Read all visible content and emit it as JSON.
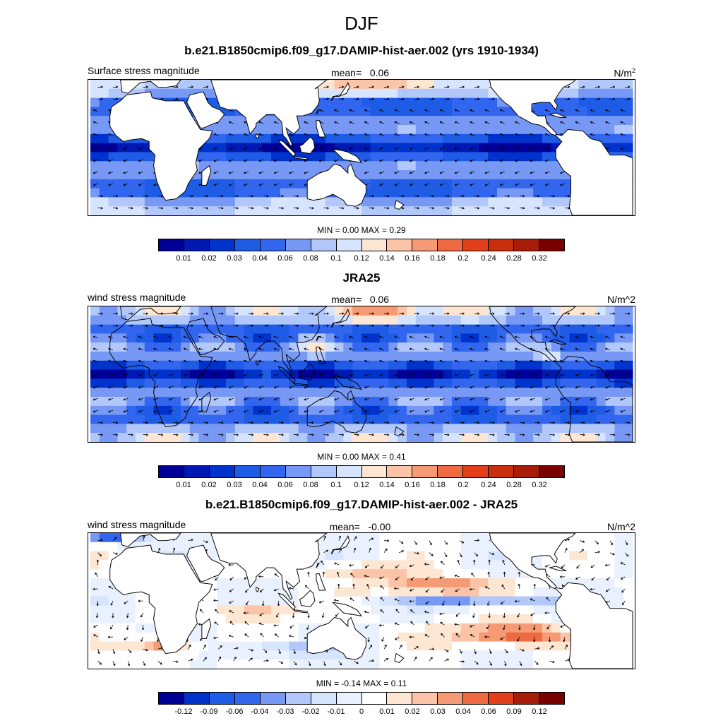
{
  "title": "DJF",
  "colors": {
    "abs_scale": [
      "#000099",
      "#0019b3",
      "#0033cc",
      "#1f5ce6",
      "#3366ee",
      "#7799f5",
      "#b3c8fa",
      "#d6e4fd",
      "#fde6d2",
      "#fcc4a6",
      "#f59a74",
      "#ee6a42",
      "#e33f1a",
      "#c92e0d",
      "#a81d0a",
      "#7a0000"
    ],
    "diff_scale": [
      "#000099",
      "#0033cc",
      "#1f5ce6",
      "#3366ee",
      "#7799f5",
      "#b3c8fa",
      "#d6e4fd",
      "#eaf1fe",
      "#ffffff",
      "#fde6d2",
      "#fcc4a6",
      "#f59a74",
      "#ee6a42",
      "#e33f1a",
      "#a81d0a",
      "#7a0000"
    ],
    "land": "#ffffff",
    "coast": "#000000"
  },
  "panels": [
    {
      "title": "b.e21.B1850cmip6.f09_g17.DAMIP-hist-aer.002 (yrs 1910-1934)",
      "left_label": "Surface stress magnitude",
      "mean_label": "mean=",
      "mean_value": "0.06",
      "units": "N/m",
      "units_sup": "2",
      "minmax": "MIN =   0.00 MAX =   0.29",
      "ticks": [
        "0.01",
        "0.02",
        "0.03",
        "0.04",
        "0.06",
        "0.08",
        "0.1",
        "0.12",
        "0.14",
        "0.16",
        "0.18",
        "0.2",
        "0.24",
        "0.28",
        "0.32"
      ],
      "scale": "abs",
      "field": "model"
    },
    {
      "title": "JRA25",
      "left_label": "wind stress magnitude",
      "mean_label": "mean=",
      "mean_value": "0.06",
      "units": "N/m^2",
      "units_sup": "",
      "minmax": "MIN =   0.00 MAX =   0.41",
      "ticks": [
        "0.01",
        "0.02",
        "0.03",
        "0.04",
        "0.06",
        "0.08",
        "0.1",
        "0.12",
        "0.14",
        "0.16",
        "0.18",
        "0.2",
        "0.24",
        "0.28",
        "0.32"
      ],
      "scale": "abs",
      "field": "obs"
    },
    {
      "title": "b.e21.B1850cmip6.f09_g17.DAMIP-hist-aer.002 - JRA25",
      "left_label": "wind stress magnitude",
      "mean_label": "mean=",
      "mean_value": "-0.00",
      "units": "N/m^2",
      "units_sup": "",
      "minmax": "MIN =  -0.14 MAX =   0.11",
      "ticks": [
        "-0.12",
        "-0.09",
        "-0.06",
        "-0.04",
        "-0.03",
        "-0.02",
        "-0.01",
        "0",
        "0.01",
        "0.02",
        "0.03",
        "0.04",
        "0.06",
        "0.09",
        "0.12"
      ],
      "scale": "diff",
      "field": "diff"
    }
  ],
  "chart_data": {
    "type": "heatmap",
    "title": "DJF",
    "subplots": [
      {
        "title": "b.e21.B1850cmip6.f09_g17.DAMIP-hist-aer.002 (yrs 1910-1934)",
        "variable": "Surface stress magnitude",
        "units": "N/m^2",
        "mean": 0.06,
        "min": 0.0,
        "max": 0.29,
        "levels": [
          0.01,
          0.02,
          0.03,
          0.04,
          0.06,
          0.08,
          0.1,
          0.12,
          0.14,
          0.16,
          0.18,
          0.2,
          0.24,
          0.28,
          0.32
        ],
        "lon_range": [
          -30,
          330
        ],
        "lat_range": [
          -45,
          45
        ],
        "overlay": "wind stress vectors"
      },
      {
        "title": "JRA25",
        "variable": "wind stress magnitude",
        "units": "N/m^2",
        "mean": 0.06,
        "min": 0.0,
        "max": 0.41,
        "levels": [
          0.01,
          0.02,
          0.03,
          0.04,
          0.06,
          0.08,
          0.1,
          0.12,
          0.14,
          0.16,
          0.18,
          0.2,
          0.24,
          0.28,
          0.32
        ],
        "lon_range": [
          -30,
          330
        ],
        "lat_range": [
          -45,
          45
        ],
        "overlay": "wind stress vectors"
      },
      {
        "title": "b.e21.B1850cmip6.f09_g17.DAMIP-hist-aer.002 - JRA25",
        "variable": "wind stress magnitude",
        "units": "N/m^2",
        "mean": -0.0,
        "min": -0.14,
        "max": 0.11,
        "levels": [
          -0.12,
          -0.09,
          -0.06,
          -0.04,
          -0.03,
          -0.02,
          -0.01,
          0,
          0.01,
          0.02,
          0.03,
          0.04,
          0.06,
          0.09,
          0.12
        ],
        "lon_range": [
          -30,
          330
        ],
        "lat_range": [
          -45,
          45
        ],
        "overlay": "wind stress difference vectors"
      }
    ]
  }
}
